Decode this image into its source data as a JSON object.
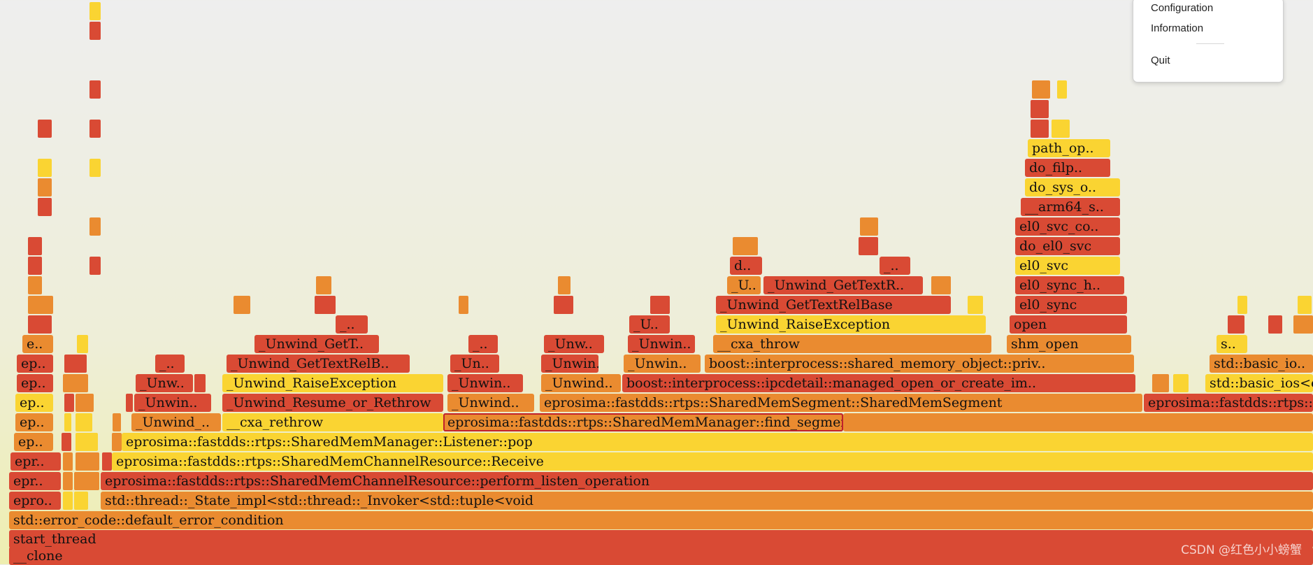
{
  "colors": {
    "red": "#d94a34",
    "orange": "#ea8b30",
    "yellow": "#fad432",
    "yellowLight": "#fbe056",
    "orangeLight": "#eea13a",
    "highlight": "#c0222b"
  },
  "menu": {
    "items": [
      "Configuration",
      "Information",
      "Quit"
    ]
  },
  "watermark": "CSDN @红色小小螃蟹",
  "frames": [
    {
      "label": "__clone",
      "c": "red"
    },
    {
      "label": "start_thread",
      "c": "red"
    },
    {
      "label": "std::error_code::default_error_condition",
      "c": "orange"
    },
    {
      "label": "epro..",
      "c": "red"
    },
    {
      "label": "std::thread::_State_impl<std::thread::_Invoker<std::tuple<void",
      "c": "orange"
    },
    {
      "label": "epr..",
      "c": "red"
    },
    {
      "label": "eprosima::fastdds::rtps::SharedMemChannelResource::perform_listen_operation",
      "c": "red"
    },
    {
      "label": "epr..",
      "c": "red"
    },
    {
      "label": "eprosima::fastdds::rtps::SharedMemChannelResource::Receive",
      "c": "yellow"
    },
    {
      "label": "ep..",
      "c": "orange"
    },
    {
      "label": "eprosima::fastdds::rtps::SharedMemManager::Listener::pop",
      "c": "yellow"
    },
    {
      "label": "ep..",
      "c": "orange"
    },
    {
      "label": "_Unwind_..",
      "c": "orange"
    },
    {
      "label": "__cxa_rethrow",
      "c": "yellow"
    },
    {
      "label": "eprosima::fastdds::rtps::SharedMemManager::find_segment",
      "c": "orange",
      "hl": true
    },
    {
      "label": "ep..",
      "c": "yellow"
    },
    {
      "label": "_Unwin..",
      "c": "red"
    },
    {
      "label": "_Unwind_Resume_or_Rethrow",
      "c": "red"
    },
    {
      "label": "_Unwind..",
      "c": "orange"
    },
    {
      "label": "eprosima::fastdds::rtps::SharedMemSegment::SharedMemSegment",
      "c": "orange"
    },
    {
      "label": "eprosima::fastdds::rtps::UUID",
      "c": "red"
    },
    {
      "label": "ep..",
      "c": "red"
    },
    {
      "label": "_Unw..",
      "c": "red"
    },
    {
      "label": "_Unwind_RaiseException",
      "c": "yellow"
    },
    {
      "label": "_Unwin..",
      "c": "red"
    },
    {
      "label": "_Unwind..",
      "c": "orange"
    },
    {
      "label": "boost::interprocess::ipcdetail::managed_open_or_create_im..",
      "c": "red"
    },
    {
      "label": "std::basic_ios<c..",
      "c": "yellow"
    },
    {
      "label": "ep..",
      "c": "red"
    },
    {
      "label": "_..",
      "c": "red"
    },
    {
      "label": "_Unwind_GetTextRelB..",
      "c": "red"
    },
    {
      "label": "_Un..",
      "c": "red"
    },
    {
      "label": "_Unwin..",
      "c": "red"
    },
    {
      "label": "_Unwin..",
      "c": "orange"
    },
    {
      "label": "boost::interprocess::shared_memory_object::priv..",
      "c": "orange"
    },
    {
      "label": "std::basic_io..",
      "c": "orange"
    },
    {
      "label": "e..",
      "c": "orange"
    },
    {
      "label": "_Unwind_GetT..",
      "c": "red"
    },
    {
      "label": "_..",
      "c": "red"
    },
    {
      "label": "_Unw..",
      "c": "red"
    },
    {
      "label": "_Unwin..",
      "c": "red"
    },
    {
      "label": "__cxa_throw",
      "c": "orange"
    },
    {
      "label": "shm_open",
      "c": "orange"
    },
    {
      "label": "s..",
      "c": "yellow"
    },
    {
      "label": "_..",
      "c": "red"
    },
    {
      "label": "_U..",
      "c": "red"
    },
    {
      "label": "_Unwind_RaiseException",
      "c": "yellow"
    },
    {
      "label": "open",
      "c": "red"
    },
    {
      "label": "_Unwind_GetTextRelBase",
      "c": "red"
    },
    {
      "label": "el0_sync",
      "c": "red"
    },
    {
      "label": "_U..",
      "c": "orange"
    },
    {
      "label": "_Unwind_GetTextR..",
      "c": "red"
    },
    {
      "label": "el0_sync_h..",
      "c": "red"
    },
    {
      "label": "d..",
      "c": "red"
    },
    {
      "label": "_..",
      "c": "red"
    },
    {
      "label": "el0_svc",
      "c": "yellow"
    },
    {
      "label": "do_el0_svc",
      "c": "red"
    },
    {
      "label": "el0_svc_co..",
      "c": "red"
    },
    {
      "label": "__arm64_s..",
      "c": "red"
    },
    {
      "label": "do_sys_o..",
      "c": "yellow"
    },
    {
      "label": "do_filp..",
      "c": "red"
    },
    {
      "label": "path_op..",
      "c": "yellow"
    }
  ]
}
